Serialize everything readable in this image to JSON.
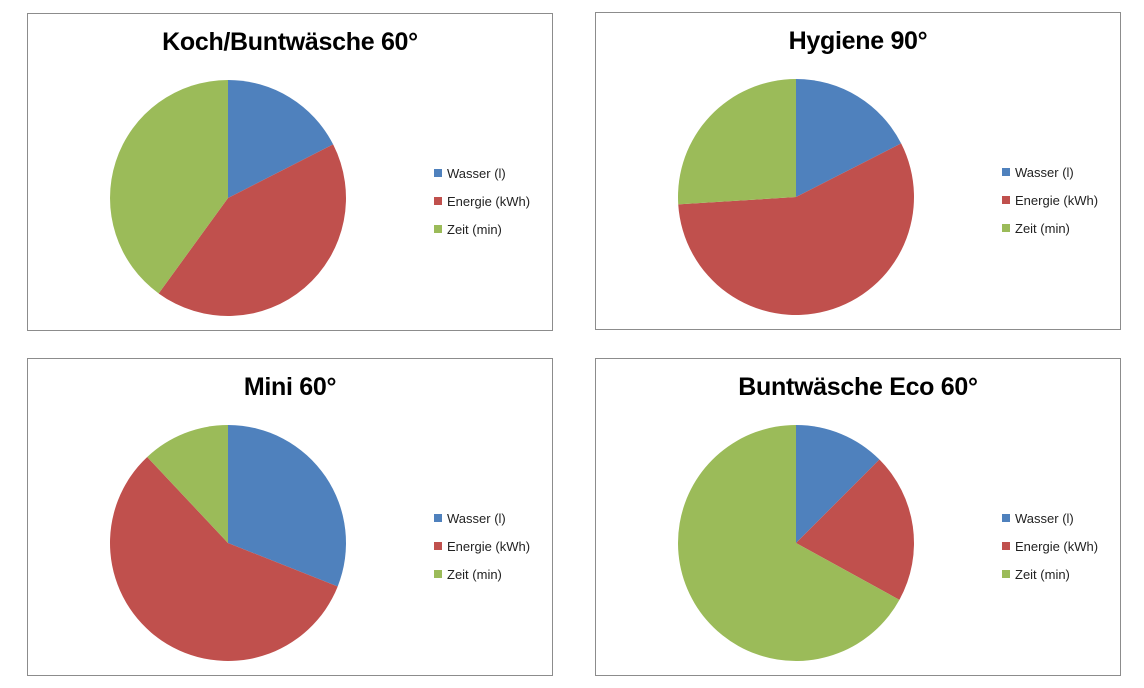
{
  "legend_labels": [
    "Wasser (l)",
    "Energie (kWh)",
    "Zeit (min)"
  ],
  "colors": {
    "wasser": "#4F81BD",
    "energie": "#C0504D",
    "zeit": "#9BBB59"
  },
  "chart_data": [
    {
      "type": "pie",
      "title": "Koch/Buntwäsche 60°",
      "legend_position": "right",
      "categories": [
        "Wasser (l)",
        "Energie (kWh)",
        "Zeit (min)"
      ],
      "values": [
        17.5,
        42.5,
        40.0
      ]
    },
    {
      "type": "pie",
      "title": "Hygiene 90°",
      "legend_position": "right",
      "categories": [
        "Wasser (l)",
        "Energie (kWh)",
        "Zeit (min)"
      ],
      "values": [
        17.5,
        56.5,
        26.0
      ]
    },
    {
      "type": "pie",
      "title": "Mini 60°",
      "legend_position": "right",
      "categories": [
        "Wasser (l)",
        "Energie (kWh)",
        "Zeit (min)"
      ],
      "values": [
        31.0,
        57.0,
        12.0
      ]
    },
    {
      "type": "pie",
      "title": "Buntwäsche Eco 60°",
      "legend_position": "right",
      "categories": [
        "Wasser (l)",
        "Energie (kWh)",
        "Zeit (min)"
      ],
      "values": [
        12.5,
        20.5,
        67.0
      ]
    }
  ]
}
